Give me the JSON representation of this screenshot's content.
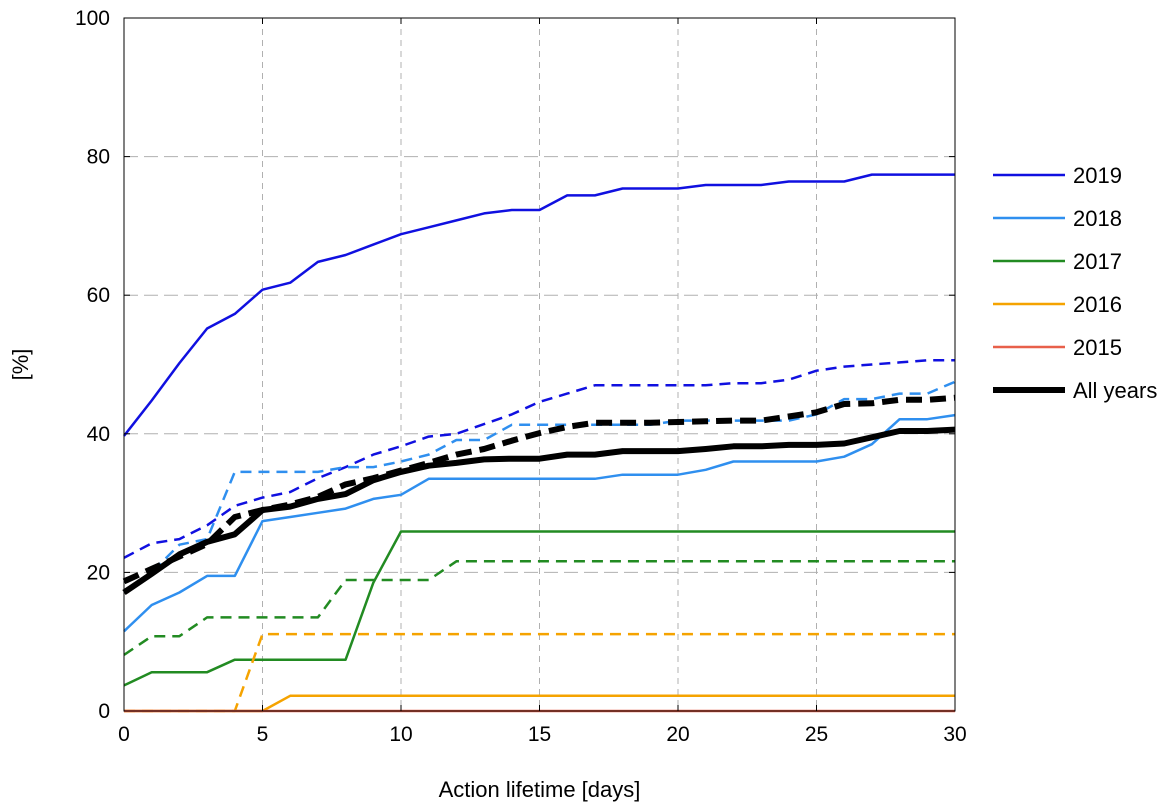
{
  "chart_data": {
    "type": "line",
    "title": "",
    "xlabel": "Action lifetime [days]",
    "ylabel": "[%]",
    "xlim": [
      0,
      30
    ],
    "ylim": [
      0,
      100
    ],
    "xticks": [
      0,
      5,
      10,
      15,
      20,
      25,
      30
    ],
    "yticks": [
      0,
      20,
      40,
      60,
      80,
      100
    ],
    "grid": true,
    "legend_position": "right",
    "legend": [
      {
        "label": "2019",
        "color": "#1010e0"
      },
      {
        "label": "2018",
        "color": "#2f8fef"
      },
      {
        "label": "2017",
        "color": "#228b22"
      },
      {
        "label": "2016",
        "color": "#f5a300"
      },
      {
        "label": "2015",
        "color": "#e8604a"
      },
      {
        "label": "All years",
        "color": "#000000"
      }
    ],
    "x": [
      0,
      1,
      2,
      3,
      4,
      5,
      6,
      7,
      8,
      9,
      10,
      11,
      12,
      13,
      14,
      15,
      16,
      17,
      18,
      19,
      20,
      21,
      22,
      23,
      24,
      25,
      26,
      27,
      28,
      29,
      30
    ],
    "series": [
      {
        "name": "2019",
        "style": "solid",
        "color": "#1010e0",
        "width": 2.5,
        "values": [
          39.7,
          44.8,
          50.2,
          55.2,
          57.3,
          60.8,
          61.8,
          64.8,
          65.8,
          67.3,
          68.8,
          69.8,
          70.8,
          71.8,
          72.3,
          72.3,
          74.4,
          74.4,
          75.4,
          75.4,
          75.4,
          75.9,
          75.9,
          75.9,
          76.4,
          76.4,
          76.4,
          77.4,
          77.4,
          77.4,
          77.4
        ]
      },
      {
        "name": "2019",
        "style": "dashed",
        "color": "#1010e0",
        "width": 2.5,
        "values": [
          22.1,
          24.2,
          24.8,
          26.8,
          29.6,
          30.8,
          31.6,
          33.6,
          35.2,
          37.0,
          38.2,
          39.6,
          40.0,
          41.4,
          42.8,
          44.6,
          45.8,
          47.0,
          47.0,
          47.0,
          47.0,
          47.0,
          47.3,
          47.3,
          47.8,
          49.1,
          49.7,
          50.0,
          50.3,
          50.6,
          50.6
        ]
      },
      {
        "name": "2018",
        "style": "solid",
        "color": "#2f8fef",
        "width": 2.5,
        "values": [
          11.5,
          15.3,
          17.1,
          19.5,
          19.5,
          27.4,
          28.0,
          28.6,
          29.2,
          30.6,
          31.2,
          33.5,
          33.5,
          33.5,
          33.5,
          33.5,
          33.5,
          33.5,
          34.1,
          34.1,
          34.1,
          34.8,
          36.0,
          36.0,
          36.0,
          36.0,
          36.7,
          38.5,
          42.1,
          42.1,
          42.7
        ]
      },
      {
        "name": "2018",
        "style": "dashed",
        "color": "#2f8fef",
        "width": 2.5,
        "values": [
          17.1,
          20.0,
          24.0,
          24.8,
          34.5,
          34.5,
          34.5,
          34.5,
          35.2,
          35.2,
          36.0,
          37.0,
          39.1,
          39.1,
          41.3,
          41.3,
          41.3,
          41.3,
          41.3,
          41.3,
          41.9,
          41.9,
          41.9,
          41.9,
          41.9,
          42.8,
          45.0,
          45.0,
          45.8,
          45.8,
          47.5
        ]
      },
      {
        "name": "2017",
        "style": "solid",
        "color": "#228b22",
        "width": 2.5,
        "values": [
          3.7,
          5.6,
          5.6,
          5.6,
          7.4,
          7.4,
          7.4,
          7.4,
          7.4,
          18.5,
          25.9,
          25.9,
          25.9,
          25.9,
          25.9,
          25.9,
          25.9,
          25.9,
          25.9,
          25.9,
          25.9,
          25.9,
          25.9,
          25.9,
          25.9,
          25.9,
          25.9,
          25.9,
          25.9,
          25.9,
          25.9
        ]
      },
      {
        "name": "2017",
        "style": "dashed",
        "color": "#228b22",
        "width": 2.5,
        "values": [
          8.1,
          10.8,
          10.8,
          13.5,
          13.5,
          13.5,
          13.5,
          13.5,
          18.9,
          18.9,
          18.9,
          18.9,
          21.6,
          21.6,
          21.6,
          21.6,
          21.6,
          21.6,
          21.6,
          21.6,
          21.6,
          21.6,
          21.6,
          21.6,
          21.6,
          21.6,
          21.6,
          21.6,
          21.6,
          21.6,
          21.6
        ]
      },
      {
        "name": "2016",
        "style": "solid",
        "color": "#f5a300",
        "width": 2.5,
        "values": [
          0,
          0,
          0,
          0,
          0,
          0,
          2.2,
          2.2,
          2.2,
          2.2,
          2.2,
          2.2,
          2.2,
          2.2,
          2.2,
          2.2,
          2.2,
          2.2,
          2.2,
          2.2,
          2.2,
          2.2,
          2.2,
          2.2,
          2.2,
          2.2,
          2.2,
          2.2,
          2.2,
          2.2,
          2.2
        ]
      },
      {
        "name": "2016",
        "style": "dashed",
        "color": "#f5a300",
        "width": 2.5,
        "values": [
          0,
          0,
          0,
          0,
          0,
          11.1,
          11.1,
          11.1,
          11.1,
          11.1,
          11.1,
          11.1,
          11.1,
          11.1,
          11.1,
          11.1,
          11.1,
          11.1,
          11.1,
          11.1,
          11.1,
          11.1,
          11.1,
          11.1,
          11.1,
          11.1,
          11.1,
          11.1,
          11.1,
          11.1,
          11.1
        ]
      },
      {
        "name": "2015",
        "style": "solid",
        "color": "#e8604a",
        "width": 2.5,
        "values": [
          0,
          0,
          0,
          0,
          0,
          0,
          0,
          0,
          0,
          0,
          0,
          0,
          0,
          0,
          0,
          0,
          0,
          0,
          0,
          0,
          0,
          0,
          0,
          0,
          0,
          0,
          0,
          0,
          0,
          0,
          0
        ]
      },
      {
        "name": "All years",
        "style": "solid",
        "color": "#000000",
        "width": 6,
        "values": [
          17.1,
          19.8,
          22.6,
          24.4,
          25.5,
          29.0,
          29.5,
          30.6,
          31.3,
          33.3,
          34.5,
          35.4,
          35.8,
          36.3,
          36.4,
          36.4,
          37.0,
          37.0,
          37.5,
          37.5,
          37.5,
          37.8,
          38.2,
          38.2,
          38.4,
          38.4,
          38.6,
          39.5,
          40.4,
          40.4,
          40.6
        ]
      },
      {
        "name": "All years",
        "style": "dashed",
        "color": "#000000",
        "width": 6,
        "values": [
          18.7,
          20.5,
          22.3,
          24.1,
          28.0,
          29.0,
          29.8,
          30.9,
          32.7,
          33.6,
          34.7,
          35.8,
          37.0,
          37.8,
          39.0,
          40.1,
          41.0,
          41.6,
          41.6,
          41.6,
          41.7,
          41.8,
          41.9,
          41.9,
          42.5,
          43.1,
          44.3,
          44.4,
          44.9,
          44.9,
          45.2
        ]
      }
    ]
  }
}
